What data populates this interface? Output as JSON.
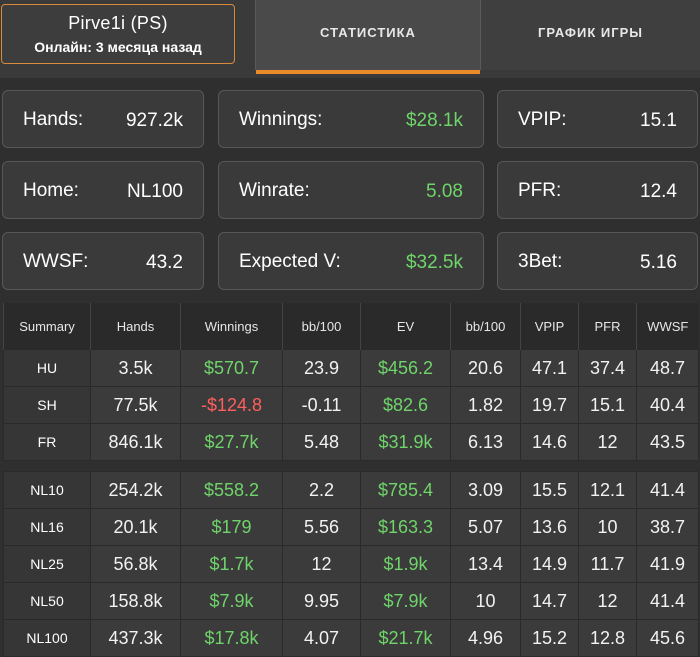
{
  "player": {
    "name": "Pirve1i (PS)",
    "status": "Онлайн: 3 месяца назад"
  },
  "tabs": [
    {
      "label": "СТАТИСТИКА",
      "active": true
    },
    {
      "label": "ГРАФИК ИГРЫ",
      "active": false
    }
  ],
  "colors": {
    "accent": "#e98a2b",
    "positive": "#6fd46a",
    "negative": "#ff5e5e",
    "background": "#2f2f2f"
  },
  "stats": [
    [
      {
        "label": "Hands:",
        "value": "927.2k",
        "green": false
      },
      {
        "label": "Winnings:",
        "value": "$28.1k",
        "green": true
      },
      {
        "label": "VPIP:",
        "value": "15.1",
        "green": false
      }
    ],
    [
      {
        "label": "Home:",
        "value": "NL100",
        "green": false
      },
      {
        "label": "Winrate:",
        "value": "5.08",
        "green": true
      },
      {
        "label": "PFR:",
        "value": "12.4",
        "green": false
      }
    ],
    [
      {
        "label": "WWSF:",
        "value": "43.2",
        "green": false
      },
      {
        "label": "Expected V:",
        "value": "$32.5k",
        "green": true
      },
      {
        "label": "3Bet:",
        "value": "5.16",
        "green": false
      }
    ]
  ],
  "table": {
    "headers": [
      "Summary",
      "Hands",
      "Winnings",
      "bb/100",
      "EV",
      "bb/100",
      "VPIP",
      "PFR",
      "WWSF"
    ],
    "groups": [
      [
        {
          "label": "HU",
          "hands": "3.5k",
          "winnings": "$570.7",
          "win_sign": "pos",
          "bb100": "23.9",
          "ev": "$456.2",
          "ev_bb100": "20.6",
          "vpip": "47.1",
          "pfr": "37.4",
          "wwsf": "48.7"
        },
        {
          "label": "SH",
          "hands": "77.5k",
          "winnings": "-$124.8",
          "win_sign": "neg",
          "bb100": "-0.11",
          "ev": "$82.6",
          "ev_bb100": "1.82",
          "vpip": "19.7",
          "pfr": "15.1",
          "wwsf": "40.4"
        },
        {
          "label": "FR",
          "hands": "846.1k",
          "winnings": "$27.7k",
          "win_sign": "pos",
          "bb100": "5.48",
          "ev": "$31.9k",
          "ev_bb100": "6.13",
          "vpip": "14.6",
          "pfr": "12",
          "wwsf": "43.5"
        }
      ],
      [
        {
          "label": "NL10",
          "hands": "254.2k",
          "winnings": "$558.2",
          "win_sign": "pos",
          "bb100": "2.2",
          "ev": "$785.4",
          "ev_bb100": "3.09",
          "vpip": "15.5",
          "pfr": "12.1",
          "wwsf": "41.4"
        },
        {
          "label": "NL16",
          "hands": "20.1k",
          "winnings": "$179",
          "win_sign": "pos",
          "bb100": "5.56",
          "ev": "$163.3",
          "ev_bb100": "5.07",
          "vpip": "13.6",
          "pfr": "10",
          "wwsf": "38.7"
        },
        {
          "label": "NL25",
          "hands": "56.8k",
          "winnings": "$1.7k",
          "win_sign": "pos",
          "bb100": "12",
          "ev": "$1.9k",
          "ev_bb100": "13.4",
          "vpip": "14.9",
          "pfr": "11.7",
          "wwsf": "41.9"
        },
        {
          "label": "NL50",
          "hands": "158.8k",
          "winnings": "$7.9k",
          "win_sign": "pos",
          "bb100": "9.95",
          "ev": "$7.9k",
          "ev_bb100": "10",
          "vpip": "14.7",
          "pfr": "12",
          "wwsf": "41.4"
        },
        {
          "label": "NL100",
          "hands": "437.3k",
          "winnings": "$17.8k",
          "win_sign": "pos",
          "bb100": "4.07",
          "ev": "$21.7k",
          "ev_bb100": "4.96",
          "vpip": "15.2",
          "pfr": "12.8",
          "wwsf": "45.6"
        }
      ]
    ]
  }
}
